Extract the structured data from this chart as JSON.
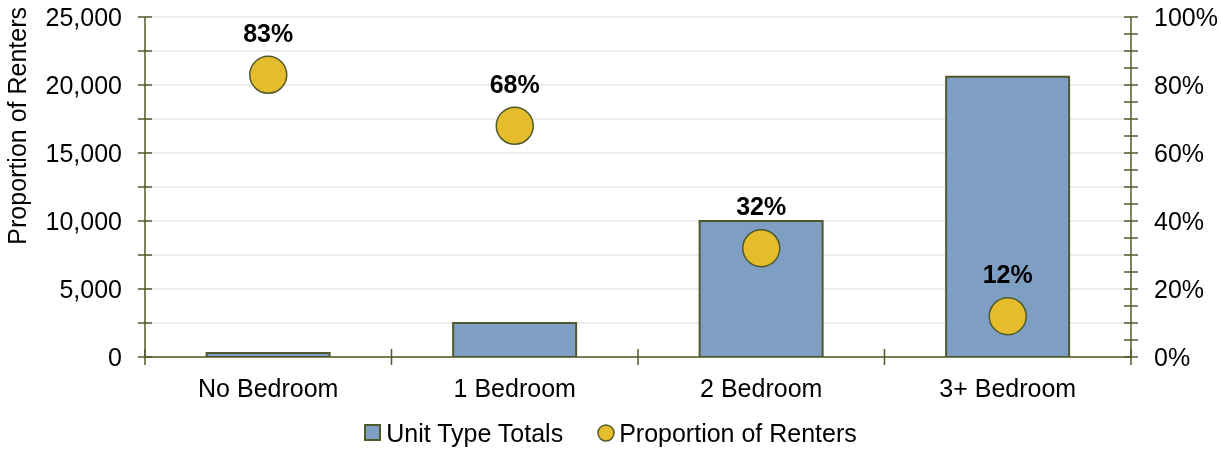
{
  "chart_data": {
    "type": "bar",
    "categories": [
      "No Bedroom",
      "1 Bedroom",
      "2 Bedroom",
      "3+ Bedroom"
    ],
    "ylabel": "Proportion of Renters",
    "series": [
      {
        "name": "Unit Type Totals",
        "color": "#7f9ec4",
        "values": [
          300,
          2500,
          10000,
          20600
        ]
      },
      {
        "name": "Proportion of Renters",
        "type": "scatter",
        "axis": "y2",
        "color": "#e5bc2c",
        "values": [
          83,
          68,
          32,
          12
        ],
        "value_labels": [
          "83%",
          "68%",
          "32%",
          "12%"
        ]
      }
    ],
    "ylim": [
      0,
      25000
    ],
    "yticks": [
      0,
      {
        "value": 2500,
        "label": null
      },
      {
        "value": 5000,
        "label": "5,000"
      },
      {
        "value": 7500,
        "label": null
      },
      {
        "value": 10000,
        "label": "10,000"
      },
      {
        "value": 12500,
        "label": null
      },
      {
        "value": 15000,
        "label": "15,000"
      },
      {
        "value": 17500,
        "label": null
      },
      {
        "value": 20000,
        "label": "20,000"
      },
      {
        "value": 22500,
        "label": null
      },
      {
        "value": 25000,
        "label": "25,000"
      }
    ],
    "y2lim": [
      0,
      100
    ],
    "y2ticks": [
      {
        "value": 0,
        "label": "0%"
      },
      {
        "value": 5,
        "label": null
      },
      {
        "value": 10,
        "label": null
      },
      {
        "value": 15,
        "label": null
      },
      {
        "value": 20,
        "label": "20%"
      },
      {
        "value": 25,
        "label": null
      },
      {
        "value": 30,
        "label": null
      },
      {
        "value": 35,
        "label": null
      },
      {
        "value": 40,
        "label": "40%"
      },
      {
        "value": 45,
        "label": null
      },
      {
        "value": 50,
        "label": null
      },
      {
        "value": 55,
        "label": null
      },
      {
        "value": 60,
        "label": "60%"
      },
      {
        "value": 65,
        "label": null
      },
      {
        "value": 70,
        "label": null
      },
      {
        "value": 75,
        "label": null
      },
      {
        "value": 80,
        "label": "80%"
      },
      {
        "value": 85,
        "label": null
      },
      {
        "value": 90,
        "label": null
      },
      {
        "value": 95,
        "label": null
      },
      {
        "value": 100,
        "label": "100%"
      }
    ],
    "grid": "y",
    "legend": "bottom",
    "marker": "circle"
  }
}
